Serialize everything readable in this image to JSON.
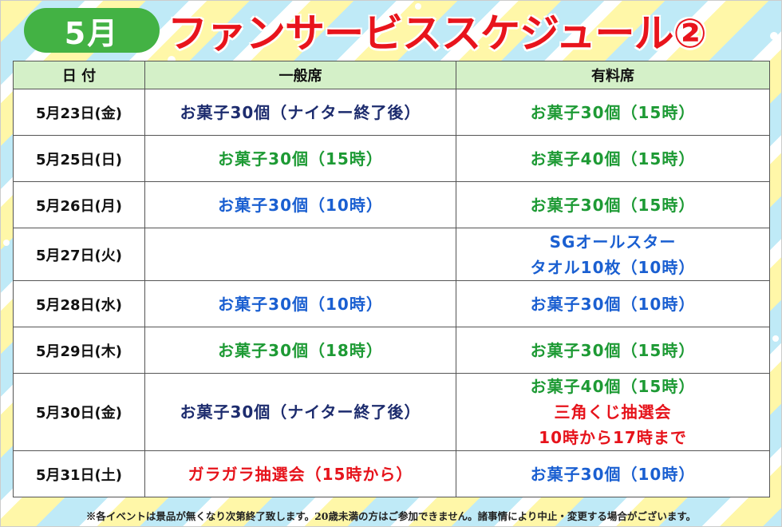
{
  "header": {
    "month_badge": "5月",
    "title": "ファンサービススケジュール②"
  },
  "columns": {
    "date": "日 付",
    "general": "一般席",
    "paid": "有料席"
  },
  "rows": [
    {
      "date": "5月23日(金)",
      "general": "お菓子30個（ナイター終了後）",
      "paid": "お菓子30個（15時）"
    },
    {
      "date": "5月25日(日)",
      "general": "お菓子30個（15時）",
      "paid": "お菓子40個（15時）"
    },
    {
      "date": "5月26日(月)",
      "general": "お菓子30個（10時）",
      "paid": "お菓子30個（15時）"
    },
    {
      "date": "5月27日(火)",
      "general": "",
      "paid_line1": "SGオールスター",
      "paid_line2": "タオル10枚（10時）"
    },
    {
      "date": "5月28日(水)",
      "general": "お菓子30個（10時）",
      "paid": "お菓子30個（10時）"
    },
    {
      "date": "5月29日(木)",
      "general": "お菓子30個（18時）",
      "paid": "お菓子30個（15時）"
    },
    {
      "date": "5月30日(金)",
      "general": "お菓子30個（ナイター終了後）",
      "paid_line1": "お菓子40個（15時）",
      "paid_line2": "三角くじ抽選会",
      "paid_line3": "10時から17時まで"
    },
    {
      "date": "5月31日(土)",
      "general": "ガラガラ抽選会（15時から）",
      "paid": "お菓子30個（10時）"
    }
  ],
  "footnote": "※各イベントは景品が無くなり次第終了致します。20歳未満の方はご参加できません。諸事情により中止・変更する場合がございます。",
  "colors": {
    "title_red": "#e8141c",
    "badge_green": "#43b244",
    "header_bg": "#d4f0c8",
    "navy": "#1d2c6e",
    "green": "#1d9a34",
    "blue": "#1a5fd1",
    "red": "#e6131b"
  }
}
